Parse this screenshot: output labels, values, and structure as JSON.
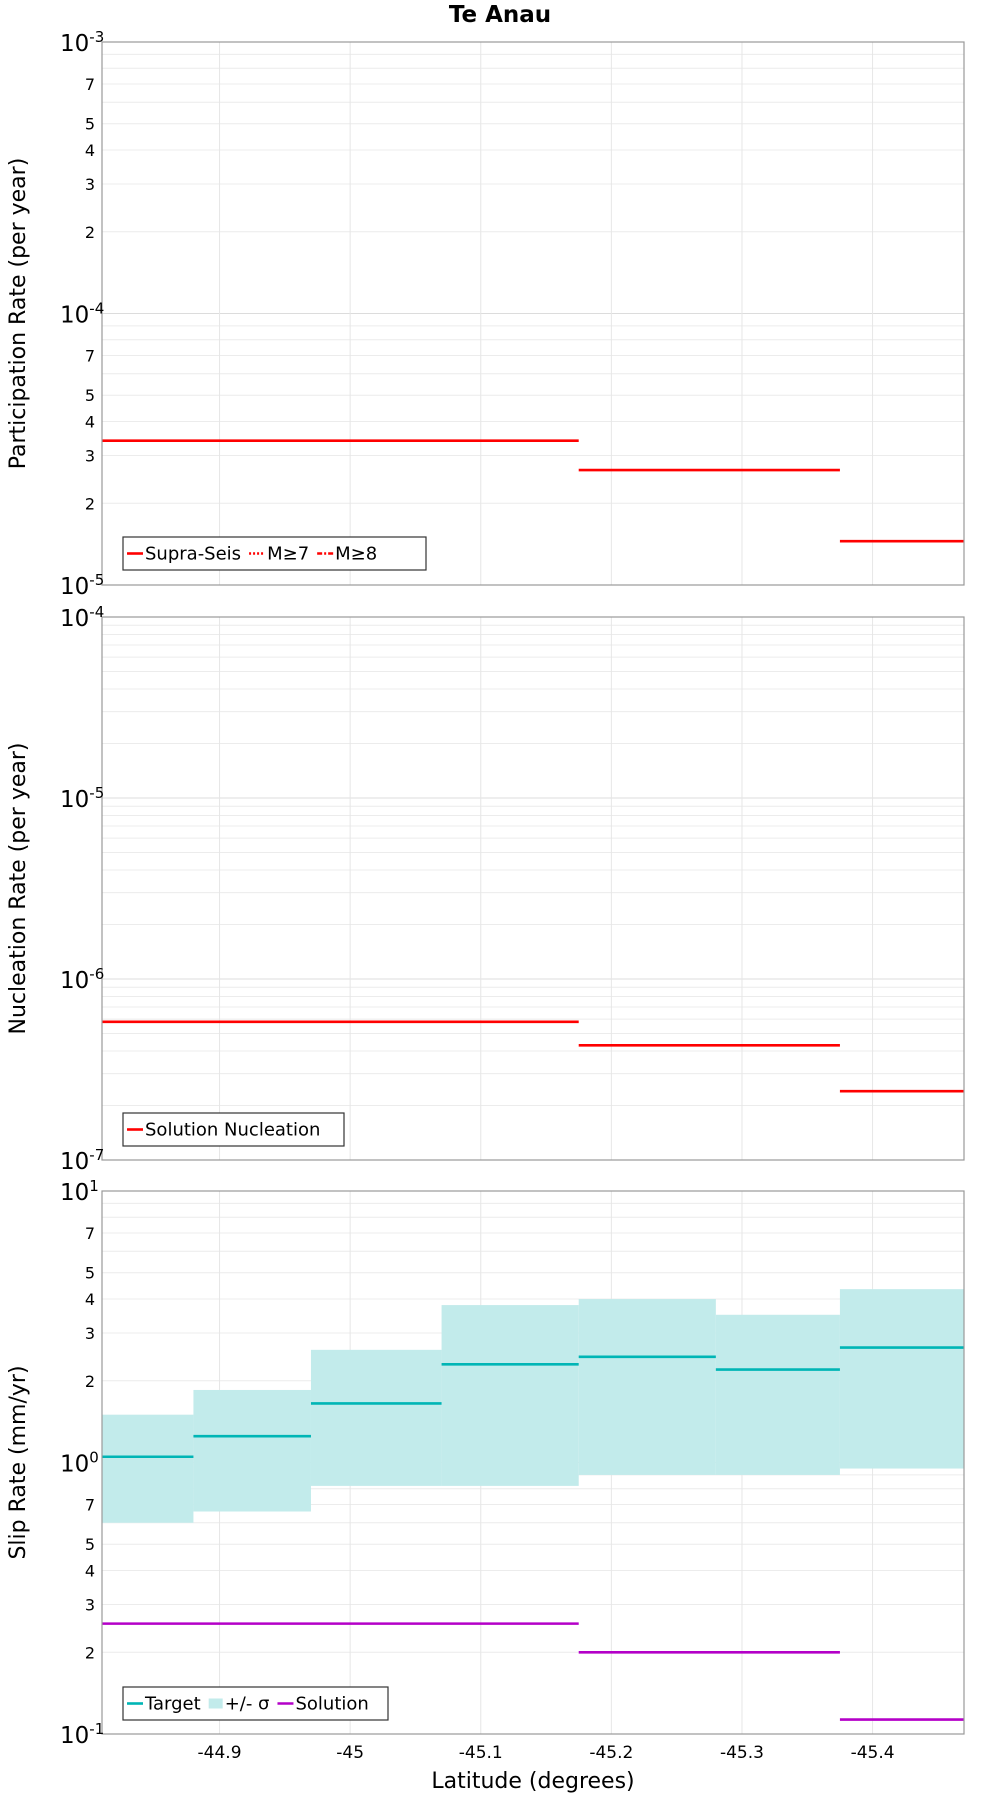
{
  "chart_data": {
    "title": "Te Anau",
    "xlabel": "Latitude (degrees)",
    "x_ticks": [
      -44.9,
      -45,
      -45.1,
      -45.2,
      -45.3,
      -45.4
    ],
    "x_tick_labels": [
      "-44.9",
      "-45",
      "-45.1",
      "-45.2",
      "-45.3",
      "-45.4"
    ],
    "xlim": [
      -44.81,
      -45.47
    ],
    "panels": [
      {
        "id": "participation",
        "type": "line",
        "ylabel": "Participation Rate (per year)",
        "yscale": "log",
        "ylim": [
          1e-05,
          0.001
        ],
        "y_major_labels": [
          {
            "base": "10",
            "exp": "-3"
          },
          {
            "base": "10",
            "exp": "-4"
          },
          {
            "base": "10",
            "exp": "-5"
          }
        ],
        "series": [
          {
            "name": "Supra-Seis",
            "color": "#ff0000",
            "style": "solid",
            "segments": [
              {
                "x0": -44.81,
                "x1": -45.175,
                "y": 3.4e-05
              },
              {
                "x0": -45.175,
                "x1": -45.375,
                "y": 2.65e-05
              },
              {
                "x0": -45.375,
                "x1": -45.47,
                "y": 1.45e-05
              }
            ]
          }
        ],
        "legend": [
          {
            "label": "Supra-Seis",
            "color": "#ff0000",
            "style": "solid"
          },
          {
            "label": "M≥7",
            "color": "#ff0000",
            "style": "dotted"
          },
          {
            "label": "M≥8",
            "color": "#ff0000",
            "style": "dashdot"
          }
        ]
      },
      {
        "id": "nucleation",
        "type": "line",
        "ylabel": "Nucleation Rate (per year)",
        "yscale": "log",
        "ylim": [
          1e-07,
          0.0001
        ],
        "y_major_labels": [
          {
            "base": "10",
            "exp": "-4"
          },
          {
            "base": "10",
            "exp": "-5"
          },
          {
            "base": "10",
            "exp": "-6"
          },
          {
            "base": "10",
            "exp": "-7"
          }
        ],
        "series": [
          {
            "name": "Solution Nucleation",
            "color": "#ff0000",
            "style": "solid",
            "segments": [
              {
                "x0": -44.81,
                "x1": -45.175,
                "y": 5.8e-07
              },
              {
                "x0": -45.175,
                "x1": -45.375,
                "y": 4.3e-07
              },
              {
                "x0": -45.375,
                "x1": -45.47,
                "y": 2.4e-07
              }
            ]
          }
        ],
        "legend": [
          {
            "label": "Solution Nucleation",
            "color": "#ff0000",
            "style": "solid"
          }
        ]
      },
      {
        "id": "slip",
        "type": "line",
        "ylabel": "Slip Rate (mm/yr)",
        "yscale": "log",
        "ylim": [
          0.1,
          10
        ],
        "y_major_labels": [
          {
            "base": "10",
            "exp": "1"
          },
          {
            "base": "10",
            "exp": "0"
          },
          {
            "base": "10",
            "exp": "-1"
          }
        ],
        "bands": [
          {
            "x0": -44.81,
            "x1": -44.88,
            "lo": 0.6,
            "hi": 1.5
          },
          {
            "x0": -44.88,
            "x1": -44.97,
            "lo": 0.66,
            "hi": 1.85
          },
          {
            "x0": -44.97,
            "x1": -45.07,
            "lo": 0.82,
            "hi": 2.6
          },
          {
            "x0": -45.07,
            "x1": -45.175,
            "lo": 0.82,
            "hi": 3.8
          },
          {
            "x0": -45.175,
            "x1": -45.28,
            "lo": 0.9,
            "hi": 4.0
          },
          {
            "x0": -45.28,
            "x1": -45.375,
            "lo": 0.9,
            "hi": 3.5
          },
          {
            "x0": -45.375,
            "x1": -45.47,
            "lo": 0.95,
            "hi": 4.35
          }
        ],
        "series": [
          {
            "name": "Target",
            "color": "#00b5b5",
            "style": "solid",
            "segments": [
              {
                "x0": -44.81,
                "x1": -44.88,
                "y": 1.05
              },
              {
                "x0": -44.88,
                "x1": -44.97,
                "y": 1.25
              },
              {
                "x0": -44.97,
                "x1": -45.07,
                "y": 1.65
              },
              {
                "x0": -45.07,
                "x1": -45.175,
                "y": 2.3
              },
              {
                "x0": -45.175,
                "x1": -45.28,
                "y": 2.45
              },
              {
                "x0": -45.28,
                "x1": -45.375,
                "y": 2.2
              },
              {
                "x0": -45.375,
                "x1": -45.47,
                "y": 2.65
              }
            ]
          },
          {
            "name": "Solution",
            "color": "#b400c8",
            "style": "solid",
            "segments": [
              {
                "x0": -44.81,
                "x1": -45.175,
                "y": 0.255
              },
              {
                "x0": -45.175,
                "x1": -45.375,
                "y": 0.2
              },
              {
                "x0": -45.375,
                "x1": -45.47,
                "y": 0.113
              }
            ]
          }
        ],
        "legend": [
          {
            "label": "Target",
            "color": "#00b5b5",
            "style": "solid"
          },
          {
            "label": "+/- σ",
            "color": "#c2ebeb",
            "style": "band"
          },
          {
            "label": "Solution",
            "color": "#b400c8",
            "style": "solid"
          }
        ]
      }
    ]
  }
}
